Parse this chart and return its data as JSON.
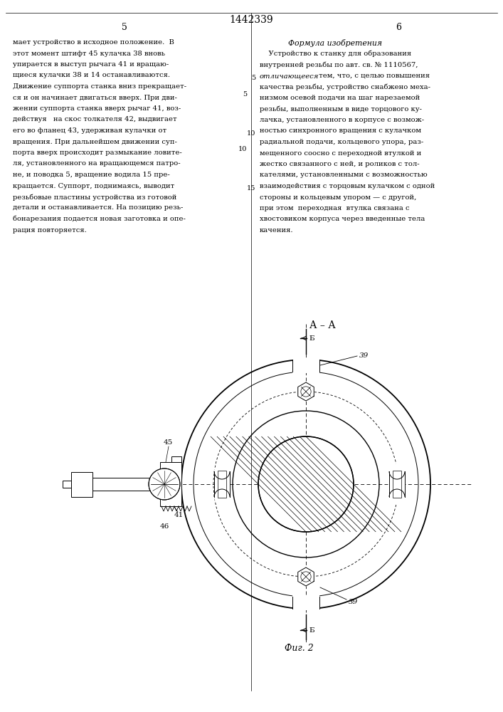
{
  "page_title": "1442339",
  "page_left_num": "5",
  "page_right_num": "6",
  "formula_title": "Формула изобретения",
  "section_label": "А–А",
  "b_label": "Б",
  "label_39": "39",
  "label_45": "45",
  "label_41": "41",
  "label_46": "46",
  "fig_label": "Фиг. 2",
  "left_lines": [
    "мает устройство в исходное положение.  В",
    "этот момент штифт 45 кулачка 38 вновь",
    "упирается в выступ рычага 41 и вращаю-",
    "щиеся кулачки 38 и 14 останавливаются.",
    "Движение суппорта станка вниз прекращает-",
    "ся и он начинает двигаться вверх. При дви-",
    "жении суппорта станка вверх рычаг 41, воз-",
    "действуя   на скос толкателя 42, выдвигает",
    "его во фланец 43, удерживая кулачки от",
    "вращения. При дальнейшем движении суп-",
    "порта вверх происходит размыкание ловите-",
    "ля, установленного на вращающемся патро-",
    "не, и поводка 5, вращение водила 15 пре-",
    "кращается. Суппорт, поднимаясь, выводит",
    "резьбовые пластины устройства из готовой",
    "детали и останавливается. На позицию резь-",
    "бонарезания подается новая заготовка и опе-",
    "рация повторяется."
  ],
  "right_lines": [
    "    Устройство к станку для образования",
    "внутренней резьбы по авт. св. № 1110567,",
    "отличающееся тем, что, с целью повышения",
    "качества резьбы, устройство снабжено меха-",
    "низмом осевой подачи на шаг нарезаемой",
    "резьбы, выполненным в виде торцового ку-",
    "лачка, установленного в корпусе с возмож-",
    "ностью синхронного вращения с кулачком",
    "радиальной подачи, кольцевого упора, раз-",
    "мещенного соосно с переходной втулкой и",
    "жестко связанного с ней, и роликов с тол-",
    "кателями, установленными с возможностью",
    "взаимодействия с торцовым кулачком с одной",
    "стороны и кольцевым упором — с другой,",
    "при этом  переходная  втулка связана с",
    "хвостовиком корпуса через введенные тела",
    "качения."
  ],
  "italic_words_line2": "отличающееся",
  "bold_words": [
    "повышения",
    "нарезаемой",
    "возмож-",
    "возможностью"
  ]
}
